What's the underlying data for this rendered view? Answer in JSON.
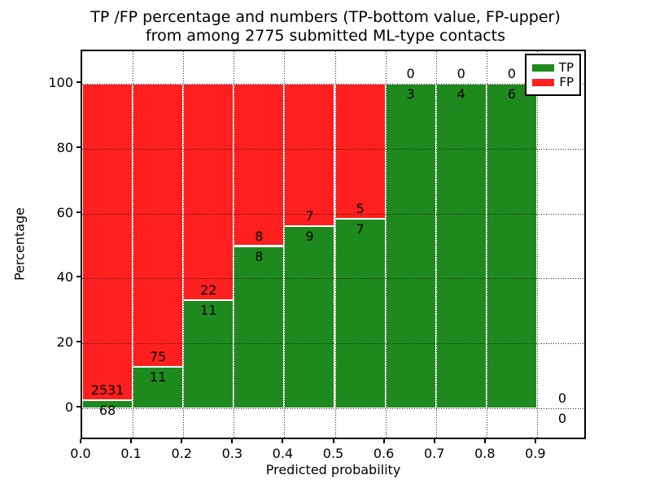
{
  "chart_data": {
    "type": "bar",
    "stacked": true,
    "title_line1": "TP /FP percentage and numbers (TP-bottom value, FP-upper)",
    "title_line2": "from among 2775 submitted ML-type contacts",
    "total_submitted_contacts": 2775,
    "xlabel": "Predicted probability",
    "ylabel": "Percentage",
    "xlim": [
      0.0,
      1.0
    ],
    "ylim": [
      -10,
      110
    ],
    "x_ticks": [
      "0.0",
      "0.1",
      "0.2",
      "0.3",
      "0.4",
      "0.5",
      "0.6",
      "0.7",
      "0.8",
      "0.9"
    ],
    "y_ticks": [
      "0",
      "20",
      "40",
      "60",
      "80",
      "100"
    ],
    "y_tick_values": [
      0,
      20,
      40,
      60,
      80,
      100
    ],
    "grid": true,
    "bar_width": 0.1,
    "colors": {
      "tp": "#1e8a1e",
      "fp": "#ff1f1f",
      "grid": "#000000",
      "background": "#ffffff"
    },
    "legend": {
      "position": "upper right",
      "entries": [
        {
          "label": "TP",
          "color": "#1e8a1e"
        },
        {
          "label": "FP",
          "color": "#ff1f1f"
        }
      ]
    },
    "bins": [
      {
        "x_start": 0.0,
        "x_end": 0.1,
        "tp": 68,
        "fp": 2531,
        "tp_pct": 2.62,
        "fp_pct": 97.38
      },
      {
        "x_start": 0.1,
        "x_end": 0.2,
        "tp": 11,
        "fp": 75,
        "tp_pct": 12.79,
        "fp_pct": 87.21
      },
      {
        "x_start": 0.2,
        "x_end": 0.3,
        "tp": 11,
        "fp": 22,
        "tp_pct": 33.33,
        "fp_pct": 66.67
      },
      {
        "x_start": 0.3,
        "x_end": 0.4,
        "tp": 8,
        "fp": 8,
        "tp_pct": 50.0,
        "fp_pct": 50.0
      },
      {
        "x_start": 0.4,
        "x_end": 0.5,
        "tp": 9,
        "fp": 7,
        "tp_pct": 56.25,
        "fp_pct": 43.75
      },
      {
        "x_start": 0.5,
        "x_end": 0.6,
        "tp": 7,
        "fp": 5,
        "tp_pct": 58.33,
        "fp_pct": 41.67
      },
      {
        "x_start": 0.6,
        "x_end": 0.7,
        "tp": 3,
        "fp": 0,
        "tp_pct": 100.0,
        "fp_pct": 0.0
      },
      {
        "x_start": 0.7,
        "x_end": 0.8,
        "tp": 4,
        "fp": 0,
        "tp_pct": 100.0,
        "fp_pct": 0.0
      },
      {
        "x_start": 0.8,
        "x_end": 0.9,
        "tp": 6,
        "fp": 0,
        "tp_pct": 100.0,
        "fp_pct": 0.0
      },
      {
        "x_start": 0.9,
        "x_end": 1.0,
        "tp": 0,
        "fp": 0,
        "tp_pct": 0.0,
        "fp_pct": 0.0
      }
    ]
  }
}
